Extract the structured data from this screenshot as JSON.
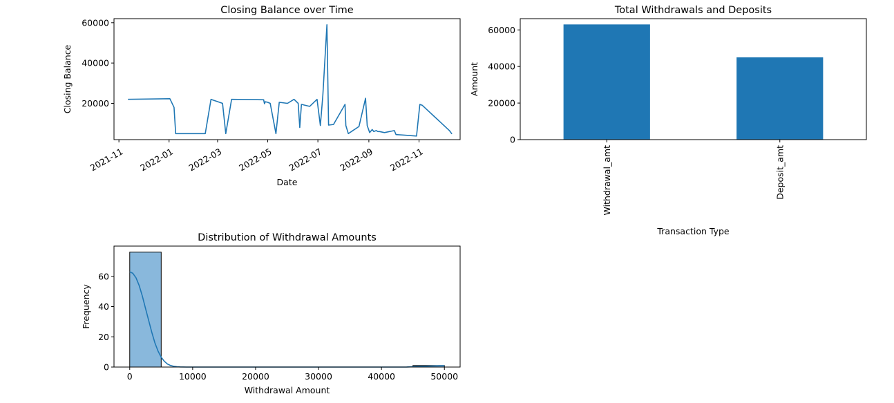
{
  "chart_data": [
    {
      "type": "line",
      "title": "Closing Balance over Time",
      "xlabel": "Date",
      "ylabel": "Closing Balance",
      "color": "#1f77b4",
      "xlim": [
        "2021-10-26",
        "2022-12-21"
      ],
      "ylim": [
        2000,
        62000
      ],
      "xticks": [
        "2021-11",
        "2022-01",
        "2022-03",
        "2022-05",
        "2022-07",
        "2022-09",
        "2022-11"
      ],
      "yticks": [
        20000,
        40000,
        60000
      ],
      "series": [
        {
          "x": [
            "2021-11-12",
            "2022-01-02",
            "2022-01-07",
            "2022-01-09",
            "2022-02-14",
            "2022-02-21",
            "2022-03-07",
            "2022-03-11",
            "2022-03-18",
            "2022-04-26",
            "2022-04-27",
            "2022-04-28",
            "2022-05-01",
            "2022-05-04",
            "2022-05-11",
            "2022-05-15",
            "2022-05-25",
            "2022-06-02",
            "2022-06-07",
            "2022-06-09",
            "2022-06-11",
            "2022-06-21",
            "2022-06-30",
            "2022-07-04",
            "2022-07-07",
            "2022-07-12",
            "2022-07-14",
            "2022-07-20",
            "2022-08-03",
            "2022-08-04",
            "2022-08-07",
            "2022-08-20",
            "2022-08-28",
            "2022-08-30",
            "2022-09-02",
            "2022-09-05",
            "2022-09-07",
            "2022-09-10",
            "2022-09-12",
            "2022-09-14",
            "2022-09-20",
            "2022-10-02",
            "2022-10-04",
            "2022-10-12",
            "2022-10-29",
            "2022-11-02",
            "2022-11-05",
            "2022-12-08",
            "2022-12-11"
          ],
          "y": [
            22000,
            22300,
            18000,
            5000,
            5000,
            22000,
            20000,
            5000,
            22000,
            21800,
            19800,
            20800,
            20500,
            20000,
            5000,
            20500,
            20000,
            22000,
            20000,
            8000,
            19500,
            18500,
            22000,
            9000,
            24000,
            59000,
            9200,
            9500,
            19500,
            9000,
            5000,
            8500,
            22500,
            9000,
            5500,
            7000,
            6000,
            6500,
            6000,
            6000,
            5500,
            6500,
            4500,
            4300,
            3800,
            19500,
            19000,
            6500,
            4800
          ]
        }
      ]
    },
    {
      "type": "bar",
      "title": "Total Withdrawals and Deposits",
      "xlabel": "Transaction Type",
      "ylabel": "Amount",
      "color": "#1f77b4",
      "categories": [
        "Withdrawal_amt",
        "Deposit_amt"
      ],
      "values": [
        63000,
        45000
      ],
      "ylim": [
        0,
        66150
      ],
      "yticks": [
        0,
        20000,
        40000,
        60000
      ]
    },
    {
      "type": "histogram",
      "title": "Distribution of Withdrawal Amounts",
      "xlabel": "Withdrawal Amount",
      "ylabel": "Frequency",
      "bar_color": "#89b8dc",
      "line_color": "#1f77b4",
      "xlim": [
        -2500,
        52500
      ],
      "ylim": [
        0,
        80
      ],
      "xticks": [
        0,
        10000,
        20000,
        30000,
        40000,
        50000
      ],
      "yticks": [
        0,
        20,
        40,
        60
      ],
      "bins": [
        {
          "from": 0,
          "to": 5000,
          "count": 76
        },
        {
          "from": 5000,
          "to": 10000,
          "count": 0
        },
        {
          "from": 10000,
          "to": 15000,
          "count": 0
        },
        {
          "from": 15000,
          "to": 20000,
          "count": 0
        },
        {
          "from": 20000,
          "to": 25000,
          "count": 0
        },
        {
          "from": 25000,
          "to": 30000,
          "count": 0
        },
        {
          "from": 30000,
          "to": 35000,
          "count": 0
        },
        {
          "from": 35000,
          "to": 40000,
          "count": 0
        },
        {
          "from": 40000,
          "to": 45000,
          "count": 0
        },
        {
          "from": 45000,
          "to": 50000,
          "count": 1
        }
      ],
      "kde": {
        "x": [
          0,
          500,
          1000,
          1500,
          2000,
          2500,
          3000,
          3500,
          4000,
          4500,
          5000,
          5500,
          6000,
          6500,
          7000,
          7500,
          8000,
          9000,
          10000,
          15000,
          20000,
          30000,
          40000,
          44000,
          45000,
          46000,
          48000,
          50000
        ],
        "y": [
          63,
          62,
          59,
          54,
          47,
          39,
          31,
          23,
          16,
          10.5,
          6.5,
          3.8,
          2.0,
          1.0,
          0.5,
          0.25,
          0.1,
          0.02,
          0,
          0,
          0,
          0,
          0,
          0.05,
          0.2,
          0.4,
          0.7,
          0.9
        ]
      }
    }
  ]
}
